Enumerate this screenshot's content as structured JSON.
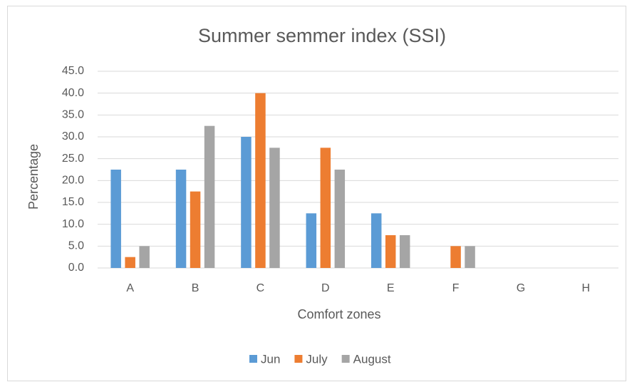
{
  "chart_data": {
    "type": "bar",
    "title": "Summer semmer index (SSI)",
    "x_label": "Comfort zones",
    "y_label": "Percentage",
    "categories": [
      "A",
      "B",
      "C",
      "D",
      "E",
      "F",
      "G",
      "H"
    ],
    "series": [
      {
        "name": "Jun",
        "color": "#5b9bd5",
        "values": [
          22.5,
          22.5,
          30,
          12.5,
          12.5,
          0,
          0,
          0
        ]
      },
      {
        "name": "July",
        "color": "#ed7d31",
        "values": [
          2.5,
          17.5,
          40,
          27.5,
          7.5,
          5,
          0,
          0
        ]
      },
      {
        "name": "August",
        "color": "#a5a5a5",
        "values": [
          5,
          32.5,
          27.5,
          22.5,
          7.5,
          5,
          0,
          0
        ]
      }
    ],
    "ylim": [
      0,
      45
    ],
    "yticks": [
      {
        "value": 0,
        "label": "0.0"
      },
      {
        "value": 5,
        "label": "5.0"
      },
      {
        "value": 10,
        "label": "10.0"
      },
      {
        "value": 15,
        "label": "15.0"
      },
      {
        "value": 20,
        "label": "20.0"
      },
      {
        "value": 25,
        "label": "25.0"
      },
      {
        "value": 30,
        "label": "30.0"
      },
      {
        "value": 35,
        "label": "35.0"
      },
      {
        "value": 40,
        "label": "40.0"
      },
      {
        "value": 45,
        "label": "45.0"
      }
    ],
    "grid": true,
    "legend": "bottom"
  }
}
